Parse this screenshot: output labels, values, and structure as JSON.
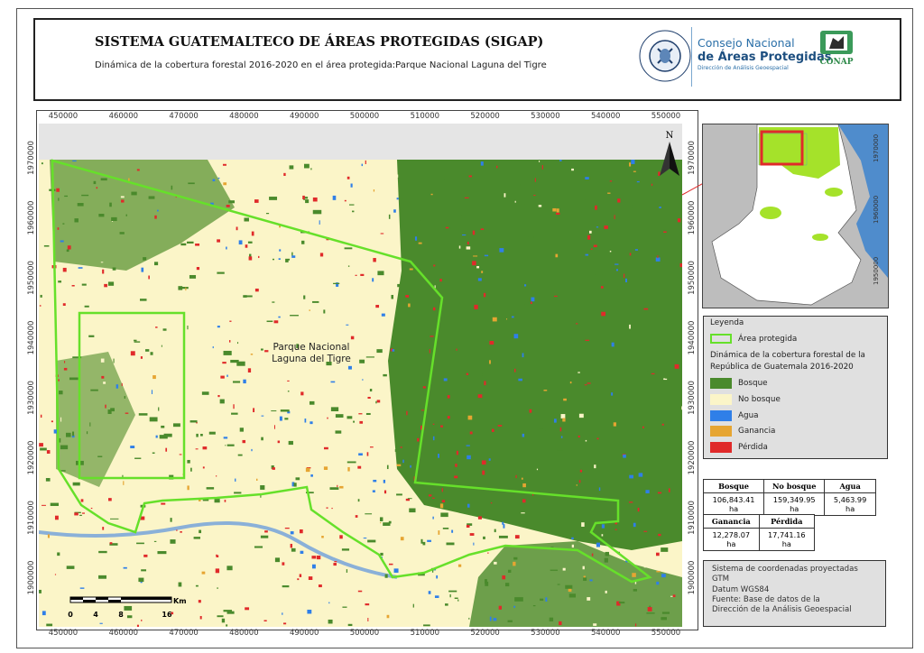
{
  "header": {
    "title": "SISTEMA GUATEMALTECO DE ÁREAS PROTEGIDAS  (SIGAP)",
    "subtitle": "Dinámica de la cobertura forestal 2016-2020 en el área protegida:Parque Nacional Laguna del Tigre",
    "logos": {
      "seal_text_top": "GOBIERNO DE LA REPÚBLICA",
      "seal_text_bottom": "GUATEMALA",
      "consejo_line1": "Consejo Nacional",
      "consejo_line2": "de Áreas Protegidas",
      "consejo_line3": "Dirección de Análisis Geoespacial",
      "conap": "CONAP"
    }
  },
  "map": {
    "x_ticks": [
      "450000",
      "460000",
      "470000",
      "480000",
      "490000",
      "500000",
      "510000",
      "520000",
      "530000",
      "540000",
      "550000"
    ],
    "y_ticks": [
      "1970000",
      "1960000",
      "1950000",
      "1940000",
      "1930000",
      "1920000",
      "1910000",
      "1900000"
    ],
    "area_label_line1": "Parque Nacional",
    "area_label_line2": "Laguna del Tigre",
    "north_label": "N",
    "scale_unit": "Km",
    "scale_labels": [
      "0",
      "4",
      "8",
      "16"
    ]
  },
  "inset": {
    "y_ticks": [
      "1970000",
      "1960000",
      "1950000"
    ]
  },
  "legend": {
    "title": "Leyenda",
    "protected_area": "Área protegida",
    "subtitle": "Dinámica de la cobertura forestal de la República de Guatemala 2016-2020",
    "classes": [
      {
        "label": "Bosque",
        "color": "#4a8a2c"
      },
      {
        "label": "No bosque",
        "color": "#fbf5c8"
      },
      {
        "label": "Agua",
        "color": "#2f7fe8"
      },
      {
        "label": "Ganancia",
        "color": "#e6a532"
      },
      {
        "label": "Pérdida",
        "color": "#e02a2a"
      }
    ],
    "outline_color": "#66e02a"
  },
  "stats": {
    "table1": {
      "headers": [
        "Bosque",
        "No bosque",
        "Agua"
      ],
      "values": [
        "106,843.41 ha",
        "159,349.95 ha",
        "5,463.99 ha"
      ]
    },
    "table2": {
      "headers": [
        "Ganancia",
        "Pérdida"
      ],
      "values": [
        "12,278.07 ha",
        "17,741.16 ha"
      ]
    }
  },
  "info": {
    "lines": [
      "Sistema de coordenadas proyectadas",
      "GTM",
      "Datum WGS84",
      "Fuente: Base de datos de la",
      "Dirección de la Análisis Geoespacial"
    ]
  }
}
